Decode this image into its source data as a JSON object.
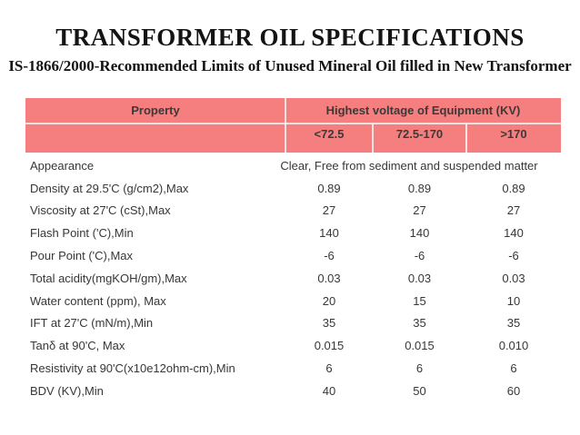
{
  "title": "TRANSFORMER OIL SPECIFICATIONS",
  "subtitle": "IS-1866/2000-Recommended Limits of Unused Mineral Oil filled in New Transformer",
  "colors": {
    "header_bg": "#f57f7f",
    "header_text": "#3a3a3a",
    "body_text": "#373737",
    "title_text": "#141414"
  },
  "table": {
    "header": {
      "property": "Property",
      "voltage_group": "Highest voltage of Equipment (KV)",
      "columns": [
        "<72.5",
        "72.5-170",
        ">170"
      ]
    },
    "rows": [
      {
        "property": "Appearance",
        "span_value": "Clear, Free from sediment and suspended matter"
      },
      {
        "property": "Density at 29.5'C (g/cm2),Max",
        "values": [
          "0.89",
          "0.89",
          "0.89"
        ]
      },
      {
        "property": "Viscosity at 27'C (cSt),Max",
        "values": [
          "27",
          "27",
          "27"
        ]
      },
      {
        "property": "Flash Point ('C),Min",
        "values": [
          "140",
          "140",
          "140"
        ]
      },
      {
        "property": "Pour Point ('C),Max",
        "values": [
          "-6",
          "-6",
          "-6"
        ]
      },
      {
        "property": "Total acidity(mgKOH/gm),Max",
        "values": [
          "0.03",
          "0.03",
          "0.03"
        ]
      },
      {
        "property": "Water content (ppm), Max",
        "values": [
          "20",
          "15",
          "10"
        ]
      },
      {
        "property": "IFT at 27'C (mN/m),Min",
        "values": [
          "35",
          "35",
          "35"
        ]
      },
      {
        "property": "Tanδ at 90'C, Max",
        "values": [
          "0.015",
          "0.015",
          "0.010"
        ]
      },
      {
        "property": "Resistivity at 90'C(x10e12ohm-cm),Min",
        "values": [
          "6",
          "6",
          "6"
        ]
      },
      {
        "property": "BDV (KV),Min",
        "values": [
          "40",
          "50",
          "60"
        ]
      }
    ]
  }
}
